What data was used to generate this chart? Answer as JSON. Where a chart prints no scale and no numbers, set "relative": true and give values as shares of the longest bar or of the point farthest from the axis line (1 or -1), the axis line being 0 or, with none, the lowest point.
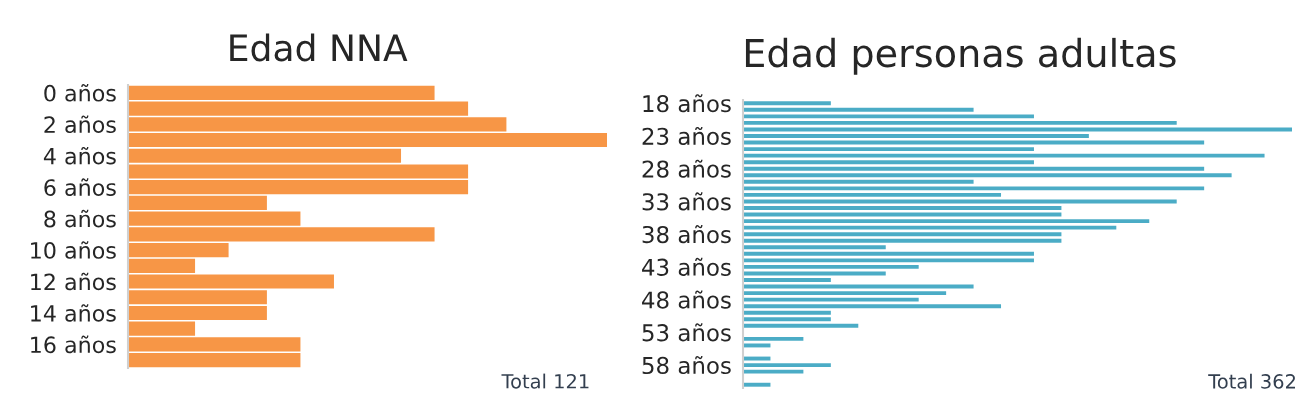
{
  "chart_data": [
    {
      "type": "bar",
      "title": "Edad NNA",
      "orientation": "horizontal",
      "relative": true,
      "color": "#f79646",
      "categories": [
        "0 años",
        null,
        "2 años",
        null,
        "4 años",
        null,
        "6 años",
        null,
        "8 años",
        null,
        "10 años",
        null,
        "12 años",
        null,
        "14 años",
        null,
        "16 años",
        null
      ],
      "values": [
        0.64,
        0.71,
        0.79,
        1,
        0.57,
        0.71,
        0.71,
        0.29,
        0.36,
        0.64,
        0.21,
        0.14,
        0.43,
        0.29,
        0.29,
        0.14,
        0.36,
        0.36
      ],
      "annotations": [
        "Total 121"
      ]
    },
    {
      "type": "bar",
      "title": "Edad personas adultas",
      "orientation": "horizontal",
      "relative": true,
      "color": "#4bacc6",
      "categories": [
        "18 años",
        null,
        null,
        null,
        null,
        "23 años",
        null,
        null,
        null,
        null,
        "28 años",
        null,
        null,
        null,
        null,
        "33 años",
        null,
        null,
        null,
        null,
        "38 años",
        null,
        null,
        null,
        null,
        "43 años",
        null,
        null,
        null,
        null,
        "48 años",
        null,
        null,
        null,
        null,
        "53 años",
        null,
        null,
        null,
        null,
        "58 años",
        null,
        null,
        null
      ],
      "values": [
        0.16,
        0.42,
        0.53,
        0.79,
        1,
        0.63,
        0.84,
        0.53,
        0.95,
        0.53,
        0.84,
        0.89,
        0.42,
        0.84,
        0.47,
        0.79,
        0.58,
        0.58,
        0.74,
        0.68,
        0.58,
        0.58,
        0.26,
        0.53,
        0.53,
        0.32,
        0.26,
        0.16,
        0.42,
        0.37,
        0.32,
        0.47,
        0.16,
        0.16,
        0.21,
        null,
        0.11,
        0.05,
        null,
        0.05,
        0.16,
        0.11,
        null,
        0.05
      ],
      "annotations": [
        "Total 362"
      ]
    }
  ]
}
